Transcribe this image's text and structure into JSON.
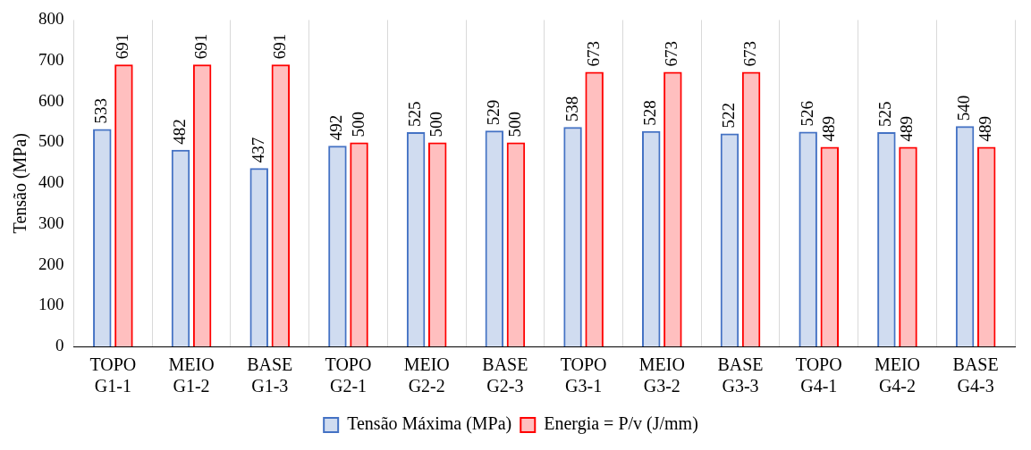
{
  "chart_data": {
    "type": "bar",
    "ylabel": "Tensão (MPa)",
    "categories": [
      "TOPO\nG1-1",
      "MEIO\nG1-2",
      "BASE\nG1-3",
      "TOPO\nG2-1",
      "MEIO\nG2-2",
      "BASE\nG2-3",
      "TOPO\nG3-1",
      "MEIO\nG3-2",
      "BASE\nG3-3",
      "TOPO\nG4-1",
      "MEIO\nG4-2",
      "BASE\nG4-3"
    ],
    "series": [
      {
        "name": "Tensão Máxima (MPa)",
        "color": "#4472c4",
        "values": [
          533,
          482,
          437,
          492,
          525,
          529,
          538,
          528,
          522,
          526,
          525,
          540
        ]
      },
      {
        "name": "Energia = P/v (J/mm)",
        "color": "#ff0000",
        "values": [
          691,
          691,
          691,
          500,
          500,
          500,
          673,
          673,
          673,
          489,
          489,
          489
        ]
      }
    ],
    "ylim": [
      0,
      800
    ],
    "yticks": [
      0,
      100,
      200,
      300,
      400,
      500,
      600,
      700,
      800
    ],
    "grid": "x",
    "legend": "bottom",
    "data_labels": true
  }
}
